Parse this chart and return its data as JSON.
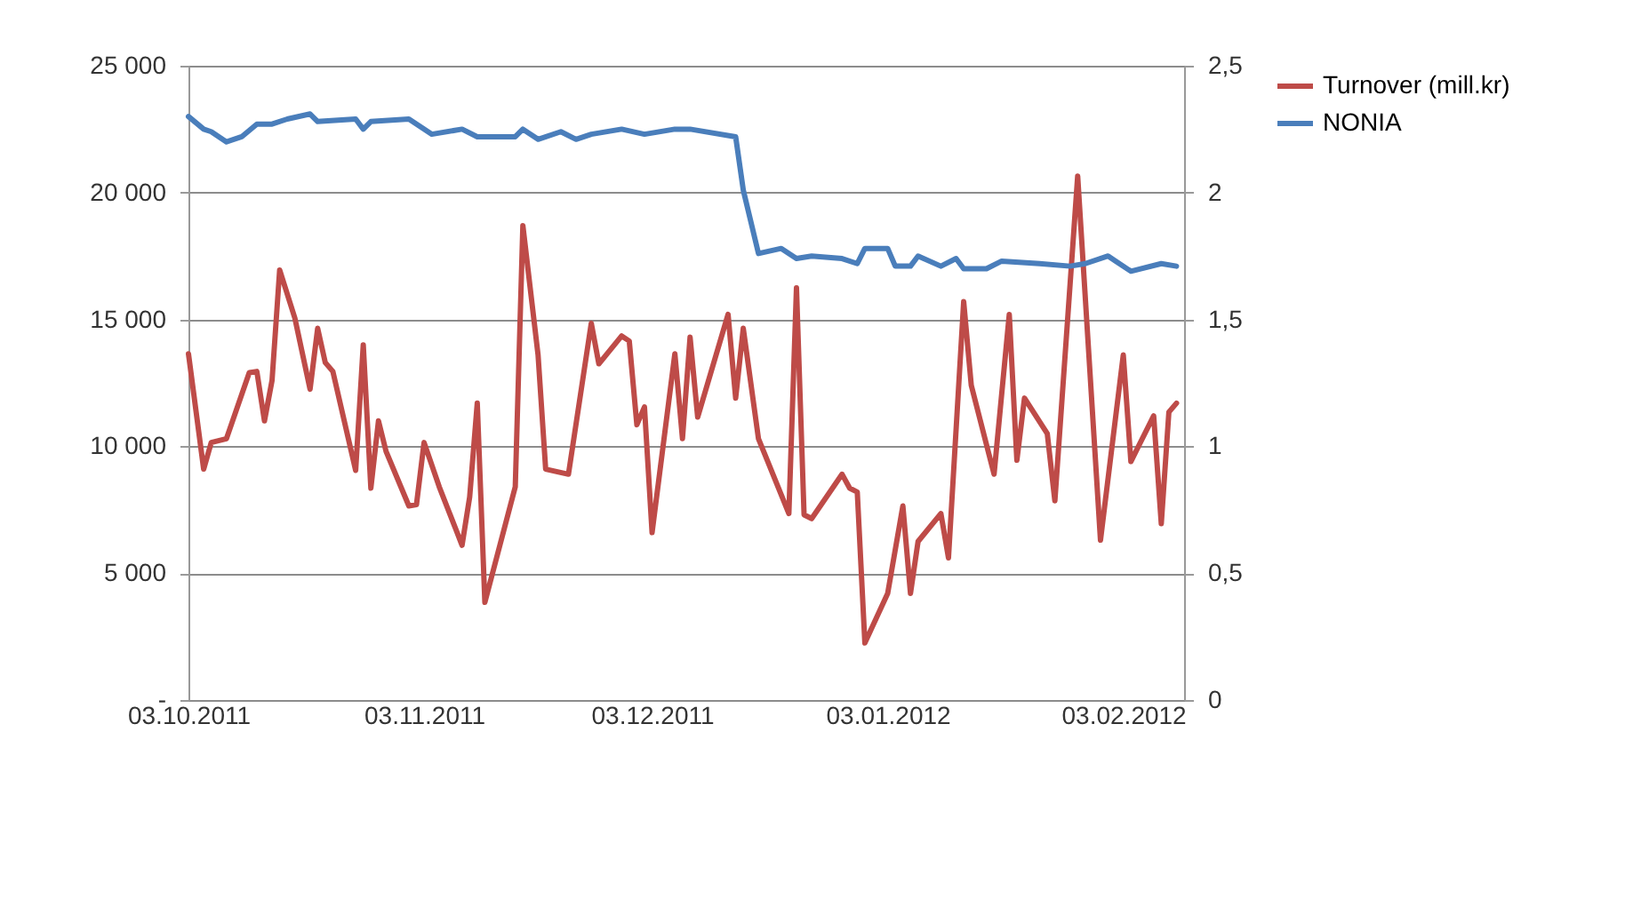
{
  "chart_data": {
    "type": "line",
    "xlim": [
      "2011-10-03",
      "2012-02-11"
    ],
    "xticks": [
      {
        "value": "2011-10-03",
        "label": "03.10.2011"
      },
      {
        "value": "2011-11-03",
        "label": "03.11.2011"
      },
      {
        "value": "2011-12-03",
        "label": "03.12.2011"
      },
      {
        "value": "2012-01-03",
        "label": "03.01.2012"
      },
      {
        "value": "2012-02-03",
        "label": "03.02.2012"
      }
    ],
    "ylim": [
      0,
      25000
    ],
    "yticks": [
      {
        "value": 0,
        "label": "-"
      },
      {
        "value": 5000,
        "label": "5 000"
      },
      {
        "value": 10000,
        "label": "10 000"
      },
      {
        "value": 15000,
        "label": "15 000"
      },
      {
        "value": 20000,
        "label": "20 000"
      },
      {
        "value": 25000,
        "label": "25 000"
      }
    ],
    "y2lim": [
      0,
      2.5
    ],
    "y2ticks": [
      0,
      {
        "value": 0.5,
        "label": "0,5"
      },
      1,
      {
        "value": 1.5,
        "label": "1,5"
      },
      2,
      {
        "value": 2.5,
        "label": "2,5"
      }
    ],
    "grid": "y",
    "legend": "right",
    "line_style": "solid",
    "marker": "none",
    "series": [
      {
        "name": "Turnover (mill.kr)",
        "color": "#be4b48",
        "x": [
          "2011-10-03",
          "2011-10-05",
          "2011-10-06",
          "2011-10-08",
          "2011-10-11",
          "2011-10-12",
          "2011-10-13",
          "2011-10-14",
          "2011-10-15",
          "2011-10-17",
          "2011-10-19",
          "2011-10-20",
          "2011-10-21",
          "2011-10-22",
          "2011-10-25",
          "2011-10-26",
          "2011-10-27",
          "2011-10-28",
          "2011-10-29",
          "2011-11-01",
          "2011-11-02",
          "2011-11-03",
          "2011-11-05",
          "2011-11-08",
          "2011-11-09",
          "2011-11-10",
          "2011-11-11",
          "2011-11-15",
          "2011-11-16",
          "2011-11-18",
          "2011-11-19",
          "2011-11-22",
          "2011-11-25",
          "2011-11-26",
          "2011-11-29",
          "2011-11-30",
          "2011-12-01",
          "2011-12-02",
          "2011-12-03",
          "2011-12-06",
          "2011-12-07",
          "2011-12-08",
          "2011-12-09",
          "2011-12-13",
          "2011-12-14",
          "2011-12-15",
          "2011-12-17",
          "2011-12-21",
          "2011-12-22",
          "2011-12-23",
          "2011-12-24",
          "2011-12-28",
          "2011-12-29",
          "2011-12-30",
          "2011-12-31",
          "2012-01-03",
          "2012-01-05",
          "2012-01-06",
          "2012-01-07",
          "2012-01-10",
          "2012-01-11",
          "2012-01-13",
          "2012-01-14",
          "2012-01-17",
          "2012-01-19",
          "2012-01-20",
          "2012-01-21",
          "2012-01-24",
          "2012-01-25",
          "2012-01-28",
          "2012-01-31",
          "2012-02-03",
          "2012-02-04",
          "2012-02-07",
          "2012-02-08",
          "2012-02-09",
          "2012-02-10"
        ],
        "values": [
          13650,
          9100,
          10150,
          10300,
          12900,
          12950,
          11000,
          12600,
          16950,
          15050,
          12250,
          14650,
          13300,
          12950,
          9050,
          14000,
          8350,
          11000,
          9800,
          7650,
          7700,
          10150,
          8400,
          6100,
          8000,
          11700,
          3850,
          8400,
          18700,
          13600,
          9100,
          8900,
          14850,
          13250,
          14350,
          14150,
          10850,
          11550,
          6600,
          13650,
          10300,
          14300,
          11150,
          15200,
          11900,
          14650,
          10300,
          7350,
          16250,
          7300,
          7150,
          8900,
          8350,
          8200,
          2250,
          4200,
          7650,
          4200,
          6250,
          7350,
          5600,
          15700,
          12400,
          8900,
          15200,
          9450,
          11900,
          10500,
          7850,
          20650,
          6300,
          13600,
          9400,
          11200,
          6950,
          11350,
          11700
        ]
      },
      {
        "name": "NONIA",
        "color": "#4a7ebb",
        "axis": "y2",
        "x": [
          "2011-10-03",
          "2011-10-05",
          "2011-10-06",
          "2011-10-08",
          "2011-10-10",
          "2011-10-12",
          "2011-10-14",
          "2011-10-16",
          "2011-10-19",
          "2011-10-20",
          "2011-10-25",
          "2011-10-26",
          "2011-10-27",
          "2011-11-01",
          "2011-11-04",
          "2011-11-08",
          "2011-11-10",
          "2011-11-15",
          "2011-11-16",
          "2011-11-18",
          "2011-11-21",
          "2011-11-23",
          "2011-11-25",
          "2011-11-29",
          "2011-12-02",
          "2011-12-06",
          "2011-12-08",
          "2011-12-14",
          "2011-12-15",
          "2011-12-17",
          "2011-12-20",
          "2011-12-22",
          "2011-12-24",
          "2011-12-28",
          "2011-12-30",
          "2011-12-31",
          "2012-01-03",
          "2012-01-04",
          "2012-01-06",
          "2012-01-07",
          "2012-01-10",
          "2012-01-12",
          "2012-01-13",
          "2012-01-16",
          "2012-01-18",
          "2012-01-23",
          "2012-01-27",
          "2012-01-29",
          "2012-02-01",
          "2012-02-02",
          "2012-02-04",
          "2012-02-08",
          "2012-02-10"
        ],
        "values": [
          2.3,
          2.25,
          2.24,
          2.2,
          2.22,
          2.27,
          2.27,
          2.29,
          2.31,
          2.28,
          2.29,
          2.25,
          2.28,
          2.29,
          2.23,
          2.25,
          2.22,
          2.22,
          2.25,
          2.21,
          2.24,
          2.21,
          2.23,
          2.25,
          2.23,
          2.25,
          2.25,
          2.22,
          2.01,
          1.76,
          1.78,
          1.74,
          1.75,
          1.74,
          1.72,
          1.78,
          1.78,
          1.71,
          1.71,
          1.75,
          1.71,
          1.74,
          1.7,
          1.7,
          1.73,
          1.72,
          1.71,
          1.72,
          1.75,
          1.73,
          1.69,
          1.72,
          1.71
        ]
      }
    ]
  }
}
